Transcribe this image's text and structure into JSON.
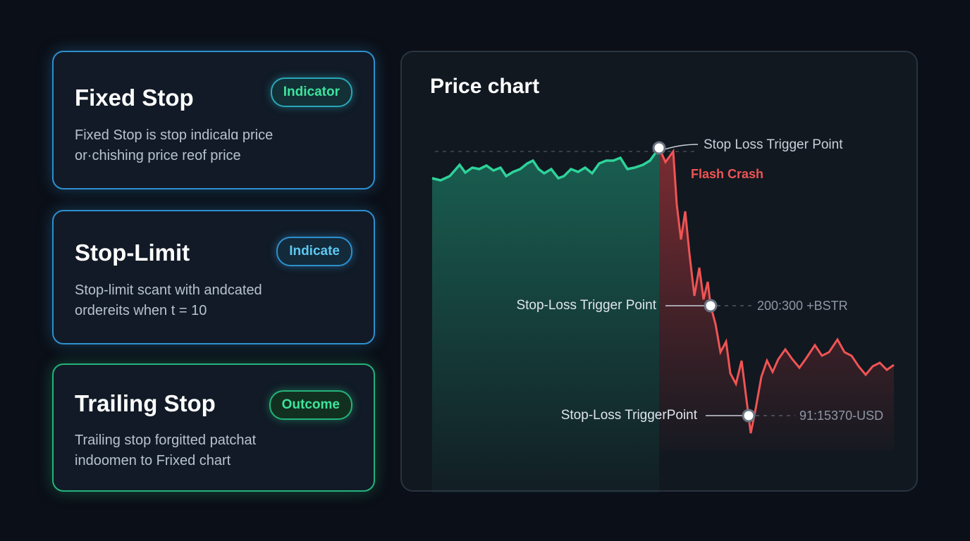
{
  "cards": [
    {
      "title": "Fixed Stop",
      "badge": "Indicator",
      "lines": [
        "Fixed Stop is stop indicalɑ price",
        "or·chishing price reof price"
      ]
    },
    {
      "title": "Stop-Limit",
      "badge": "Indicate",
      "lines": [
        "Stop-limit scant with andcated",
        "ordereits when t = 10"
      ]
    },
    {
      "title": "Trailing Stop",
      "badge": "Outcome",
      "lines": [
        "Trailing stop forgitted patchat",
        "indoomen to Frixed chart"
      ]
    }
  ],
  "panel": {
    "title": "Price chart",
    "annotations": {
      "top_trigger": "Stop Loss Trigger Point",
      "crash": "Flash Crash",
      "mid_trigger": "Stop-Loss Trigger Point",
      "mid_value": "200:300 +BSTR",
      "low_trigger": "Stop-Loss TriggerPoint",
      "low_value": "91:15370-USD"
    }
  }
}
